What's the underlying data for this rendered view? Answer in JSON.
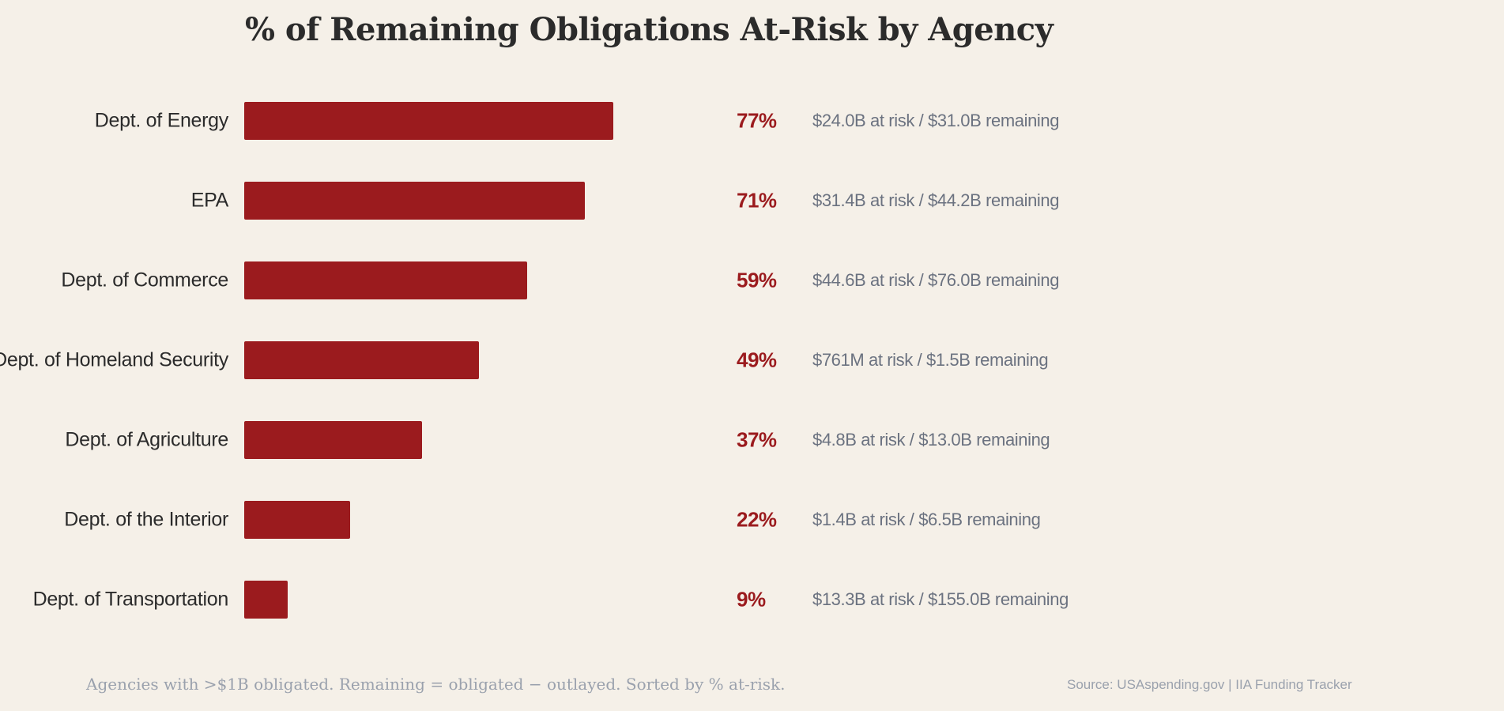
{
  "chart_data": {
    "type": "bar",
    "orientation": "horizontal",
    "title": "% of Remaining Obligations At-Risk by Agency",
    "categories": [
      "Dept. of Energy",
      "EPA",
      "Dept. of Commerce",
      "Dept. of Homeland Security",
      "Dept. of Agriculture",
      "Dept. of the Interior",
      "Dept. of Transportation"
    ],
    "values": [
      77,
      71,
      59,
      49,
      37,
      22,
      9
    ],
    "value_labels": [
      "77%",
      "71%",
      "59%",
      "49%",
      "37%",
      "22%",
      "9%"
    ],
    "details": [
      "$24.0B at risk / $31.0B remaining",
      "$31.4B at risk / $44.2B remaining",
      "$44.6B at risk / $76.0B remaining",
      "$761M at risk / $1.5B remaining",
      "$4.8B at risk / $13.0B remaining",
      "$1.4B at risk / $6.5B remaining",
      "$13.3B at risk / $155.0B remaining"
    ],
    "xlim": [
      0,
      100
    ],
    "grid": false,
    "bar_color": "#9b1b1e",
    "note": "Agencies with >$1B obligated. Remaining = obligated − outlayed. Sorted by % at-risk.",
    "source": "Source: USAspending.gov  |  IIA Funding Tracker"
  }
}
